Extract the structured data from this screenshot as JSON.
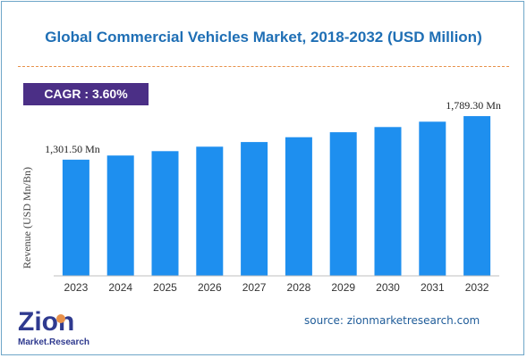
{
  "title": "Global Commercial Vehicles Market, 2018-2032 (USD Million)",
  "cagr_label": "CAGR : 3.60%",
  "source_text": "source: zionmarketresearch.com",
  "logo": {
    "word": "Zion",
    "subword": "Market.Research"
  },
  "colors": {
    "bar": "#1e8fef",
    "title": "#1f6fb5",
    "cagr_bg": "#4b2f86",
    "divider": "#e8914a"
  },
  "chart_data": {
    "type": "bar",
    "categories": [
      "2023",
      "2024",
      "2025",
      "2026",
      "2027",
      "2028",
      "2029",
      "2030",
      "2031",
      "2032"
    ],
    "values": [
      1301.5,
      1348,
      1397,
      1447,
      1499,
      1553,
      1609,
      1667,
      1727,
      1789.3
    ],
    "data_labels": [
      {
        "index": 0,
        "text": "1,301.50 Mn"
      },
      {
        "index": 9,
        "text": "1,789.30 Mn"
      }
    ],
    "ylabel": "Revenue (USD Mn/Bn)",
    "xlabel": "",
    "ylim": [
      0,
      1940
    ],
    "grid": false,
    "legend": "none"
  }
}
